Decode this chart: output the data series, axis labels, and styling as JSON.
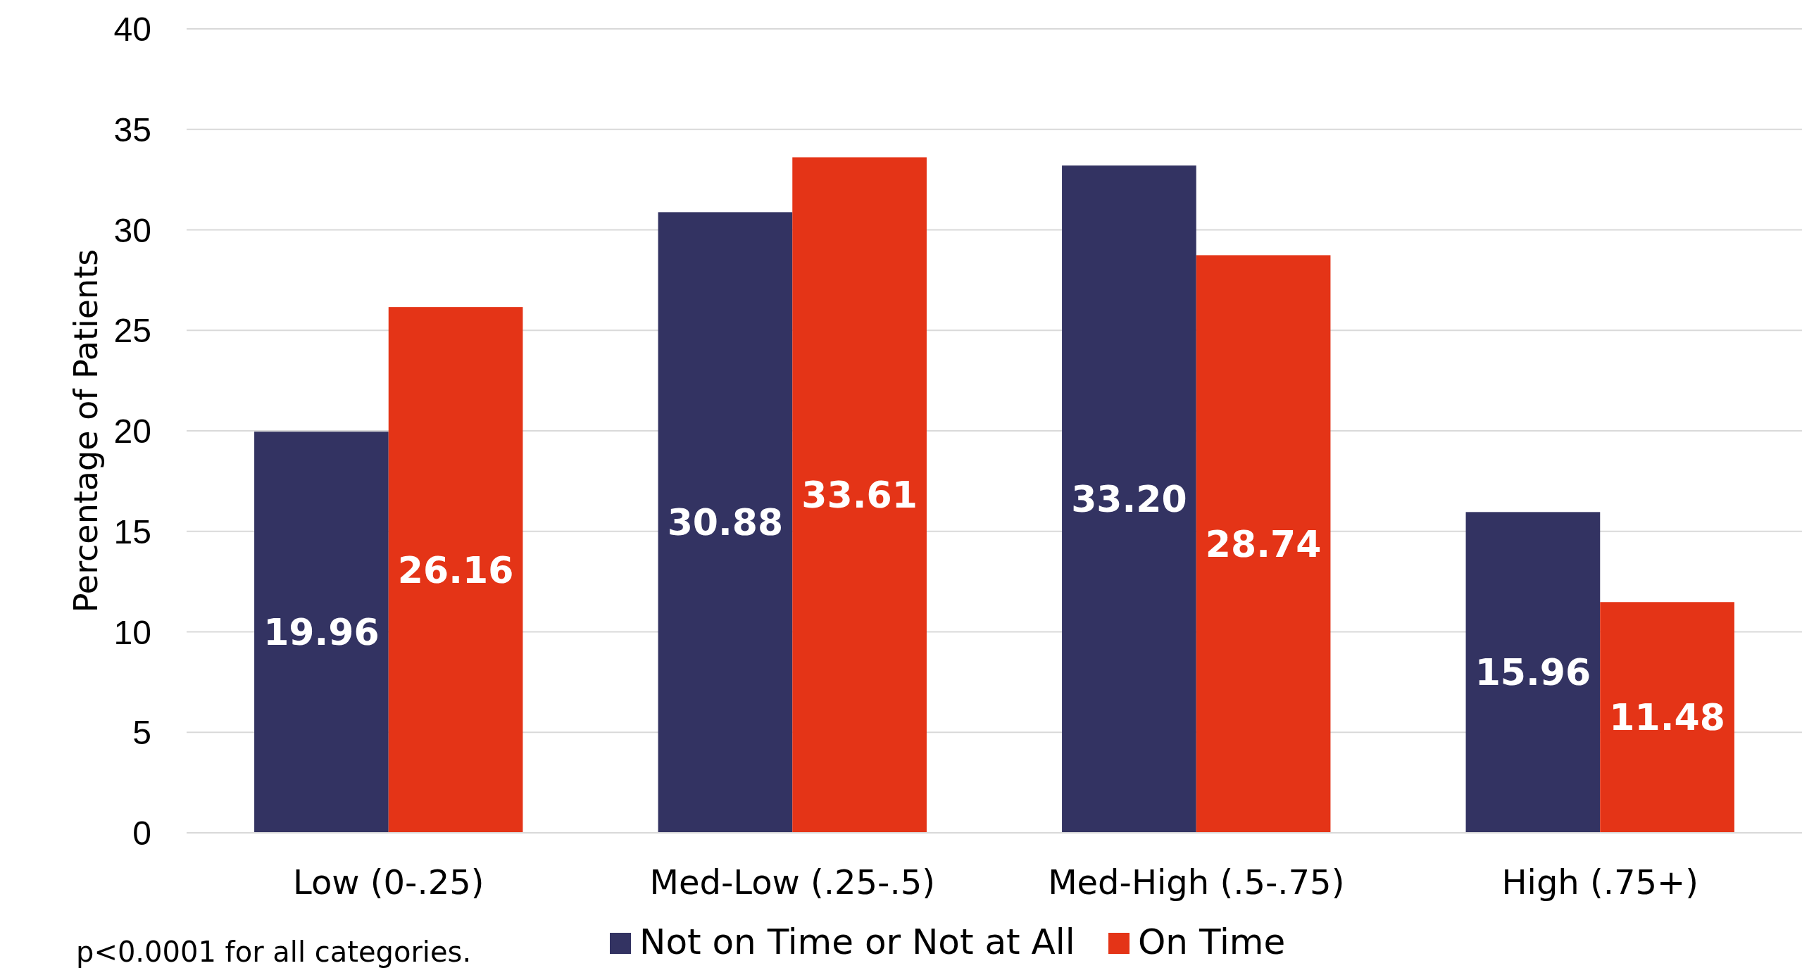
{
  "chart_data": {
    "type": "bar",
    "ylabel": "Percentage of Patients",
    "categories": [
      "Low (0-.25)",
      "Med-Low (.25-.5)",
      "Med-High (.5-.75)",
      "High (.75+)"
    ],
    "series": [
      {
        "name": "Not on Time or Not at All",
        "color": "#333362",
        "values": [
          19.96,
          30.88,
          33.2,
          15.96
        ],
        "value_labels": [
          "19.96",
          "30.88",
          "33.20",
          "15.96"
        ]
      },
      {
        "name": "On Time",
        "color": "#e43417",
        "values": [
          26.16,
          33.61,
          28.74,
          11.48
        ],
        "value_labels": [
          "26.16",
          "33.61",
          "28.74",
          "11.48"
        ]
      }
    ],
    "ylim": [
      0,
      40
    ],
    "yticks": [
      0,
      5,
      10,
      15,
      20,
      25,
      30,
      35,
      40
    ],
    "grid": "y",
    "legend": "bottom",
    "annotations": [
      "p<0.0001 for all categories."
    ]
  }
}
